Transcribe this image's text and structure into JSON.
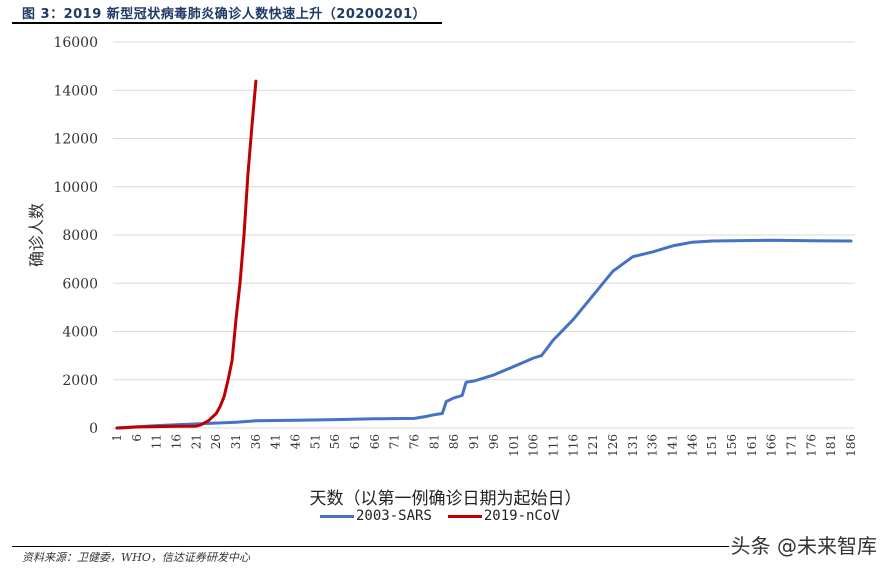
{
  "header": {
    "title": "图 3：2019 新型冠状病毒肺炎确诊人数快速上升（20200201）"
  },
  "footer": {
    "source": "资料来源：卫健委，WHO，信达证券研发中心",
    "watermark": "头条 @未来智库"
  },
  "colors": {
    "sars": "#4472c4",
    "ncov": "#c00000",
    "grid": "#d9d9d9",
    "title": "#1f3a68"
  },
  "chart_data": {
    "type": "line",
    "title": "2019 新型冠状病毒肺炎确诊人数快速上升（20200201）",
    "xlabel": "天数（以第一例确诊日期为起始日）",
    "ylabel": "确诊人数",
    "ylim": [
      0,
      16000
    ],
    "xlim": [
      1,
      186
    ],
    "grid": true,
    "legend_position": "bottom",
    "yticks": [
      0,
      2000,
      4000,
      6000,
      8000,
      10000,
      12000,
      14000,
      16000
    ],
    "xticks": [
      1,
      6,
      11,
      16,
      21,
      26,
      31,
      36,
      41,
      46,
      51,
      56,
      61,
      66,
      71,
      76,
      81,
      86,
      91,
      96,
      101,
      106,
      111,
      116,
      121,
      126,
      131,
      136,
      141,
      146,
      151,
      156,
      161,
      166,
      171,
      176,
      181,
      186
    ],
    "series": [
      {
        "name": "2003-SARS",
        "color": "#4472c4",
        "x": [
          1,
          11,
          21,
          31,
          36,
          46,
          56,
          66,
          76,
          79,
          81,
          83,
          84,
          86,
          88,
          89,
          91,
          96,
          101,
          106,
          108,
          111,
          116,
          121,
          126,
          131,
          136,
          141,
          146,
          151,
          161,
          166,
          176,
          186
        ],
        "y": [
          0,
          100,
          170,
          240,
          300,
          320,
          350,
          380,
          400,
          480,
          550,
          600,
          1100,
          1250,
          1350,
          1900,
          1950,
          2200,
          2550,
          2900,
          3000,
          3650,
          4500,
          5500,
          6500,
          7100,
          7300,
          7550,
          7700,
          7750,
          7770,
          7780,
          7760,
          7750
        ]
      },
      {
        "name": "2019-nCoV",
        "color": "#c00000",
        "x": [
          1,
          6,
          11,
          16,
          21,
          22,
          24,
          26,
          27,
          28,
          29,
          30,
          31,
          32,
          33,
          34,
          35,
          36
        ],
        "y": [
          0,
          40,
          60,
          70,
          80,
          120,
          300,
          600,
          900,
          1300,
          2000,
          2800,
          4500,
          6000,
          8000,
          10500,
          12500,
          14380
        ]
      }
    ]
  }
}
